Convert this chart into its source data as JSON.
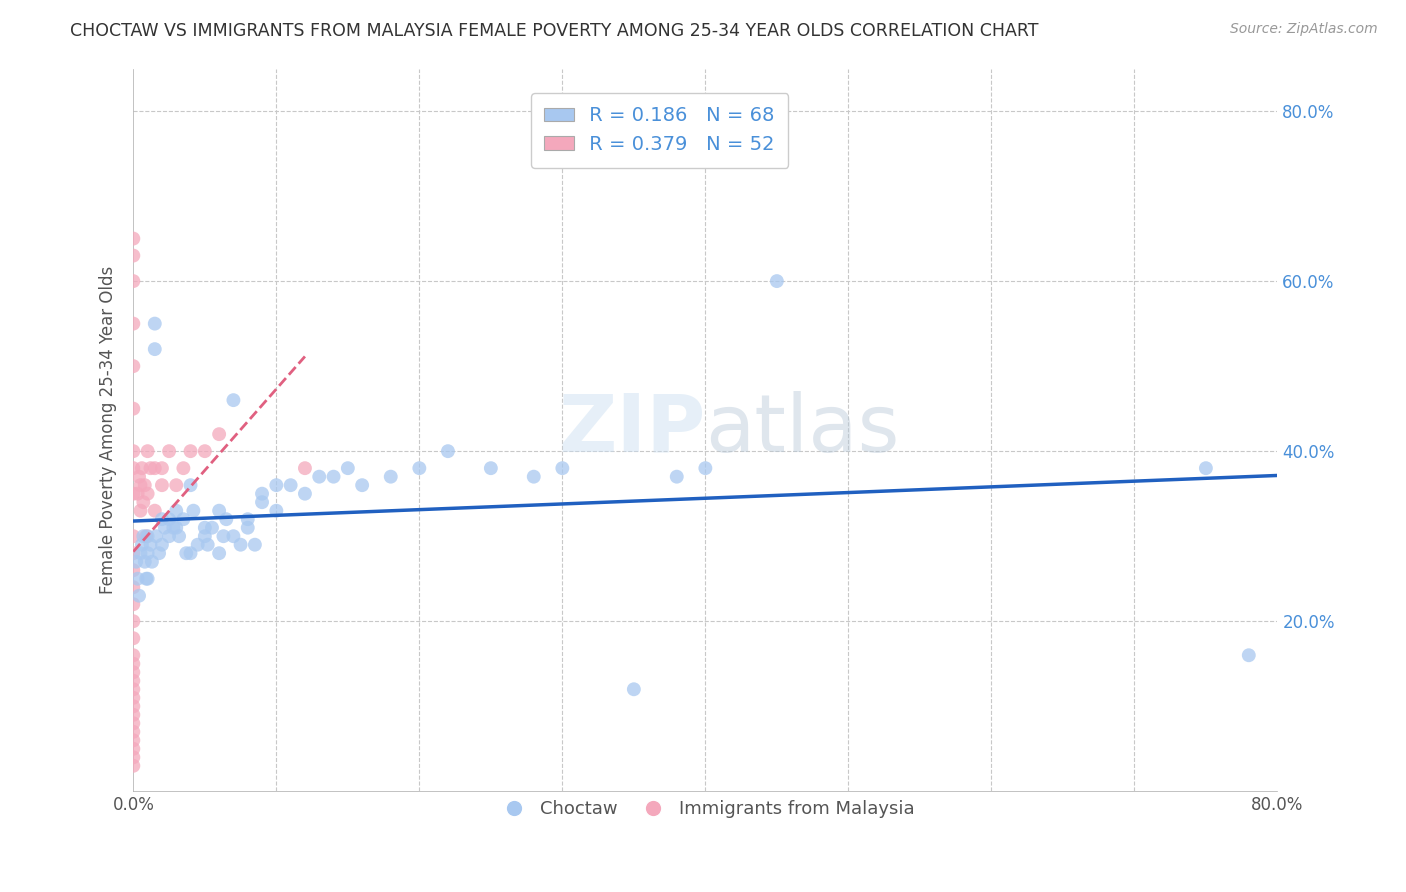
{
  "title": "CHOCTAW VS IMMIGRANTS FROM MALAYSIA FEMALE POVERTY AMONG 25-34 YEAR OLDS CORRELATION CHART",
  "source": "Source: ZipAtlas.com",
  "ylabel": "Female Poverty Among 25-34 Year Olds",
  "xmin": 0.0,
  "xmax": 0.8,
  "ymin": 0.0,
  "ymax": 0.85,
  "watermark": "ZIPatlas",
  "choctaw_color": "#a8c8f0",
  "malaysia_color": "#f4a8bc",
  "choctaw_R": 0.186,
  "choctaw_N": 68,
  "malaysia_R": 0.379,
  "malaysia_N": 52,
  "legend_labels": [
    "Choctaw",
    "Immigrants from Malaysia"
  ],
  "line_color_blue": "#2060c0",
  "line_color_pink": "#e06080",
  "bg_color": "#ffffff",
  "grid_color": "#c8c8c8",
  "tick_color": "#4a90d9",
  "title_color": "#333333",
  "source_color": "#999999",
  "ylabel_color": "#555555",
  "choctaw_x": [
    0.002,
    0.003,
    0.004,
    0.005,
    0.006,
    0.007,
    0.008,
    0.009,
    0.01,
    0.01,
    0.01,
    0.012,
    0.013,
    0.015,
    0.015,
    0.016,
    0.018,
    0.02,
    0.02,
    0.022,
    0.025,
    0.025,
    0.028,
    0.03,
    0.03,
    0.032,
    0.035,
    0.037,
    0.04,
    0.04,
    0.042,
    0.045,
    0.05,
    0.05,
    0.052,
    0.055,
    0.06,
    0.06,
    0.063,
    0.065,
    0.07,
    0.07,
    0.075,
    0.08,
    0.08,
    0.085,
    0.09,
    0.09,
    0.1,
    0.1,
    0.11,
    0.12,
    0.13,
    0.14,
    0.15,
    0.16,
    0.18,
    0.2,
    0.22,
    0.25,
    0.28,
    0.3,
    0.35,
    0.38,
    0.4,
    0.45,
    0.75,
    0.78
  ],
  "choctaw_y": [
    0.27,
    0.25,
    0.23,
    0.28,
    0.29,
    0.3,
    0.27,
    0.25,
    0.28,
    0.3,
    0.25,
    0.29,
    0.27,
    0.52,
    0.55,
    0.3,
    0.28,
    0.32,
    0.29,
    0.31,
    0.3,
    0.32,
    0.31,
    0.31,
    0.33,
    0.3,
    0.32,
    0.28,
    0.36,
    0.28,
    0.33,
    0.29,
    0.3,
    0.31,
    0.29,
    0.31,
    0.33,
    0.28,
    0.3,
    0.32,
    0.46,
    0.3,
    0.29,
    0.32,
    0.31,
    0.29,
    0.34,
    0.35,
    0.33,
    0.36,
    0.36,
    0.35,
    0.37,
    0.37,
    0.38,
    0.36,
    0.37,
    0.38,
    0.4,
    0.38,
    0.37,
    0.38,
    0.12,
    0.37,
    0.38,
    0.6,
    0.38,
    0.16
  ],
  "malaysia_x": [
    0.0,
    0.0,
    0.0,
    0.0,
    0.0,
    0.0,
    0.0,
    0.0,
    0.0,
    0.0,
    0.0,
    0.0,
    0.0,
    0.0,
    0.0,
    0.0,
    0.0,
    0.0,
    0.0,
    0.0,
    0.0,
    0.0,
    0.0,
    0.0,
    0.0,
    0.0,
    0.0,
    0.0,
    0.0,
    0.0,
    0.003,
    0.004,
    0.005,
    0.005,
    0.006,
    0.007,
    0.008,
    0.009,
    0.01,
    0.01,
    0.012,
    0.015,
    0.015,
    0.02,
    0.02,
    0.025,
    0.03,
    0.035,
    0.04,
    0.05,
    0.06,
    0.12
  ],
  "malaysia_y": [
    0.03,
    0.04,
    0.05,
    0.06,
    0.07,
    0.08,
    0.09,
    0.1,
    0.11,
    0.12,
    0.13,
    0.14,
    0.15,
    0.16,
    0.18,
    0.2,
    0.22,
    0.24,
    0.26,
    0.28,
    0.3,
    0.35,
    0.4,
    0.45,
    0.5,
    0.55,
    0.6,
    0.63,
    0.65,
    0.38,
    0.35,
    0.37,
    0.33,
    0.36,
    0.38,
    0.34,
    0.36,
    0.3,
    0.35,
    0.4,
    0.38,
    0.33,
    0.38,
    0.36,
    0.38,
    0.4,
    0.36,
    0.38,
    0.4,
    0.4,
    0.42,
    0.38
  ]
}
